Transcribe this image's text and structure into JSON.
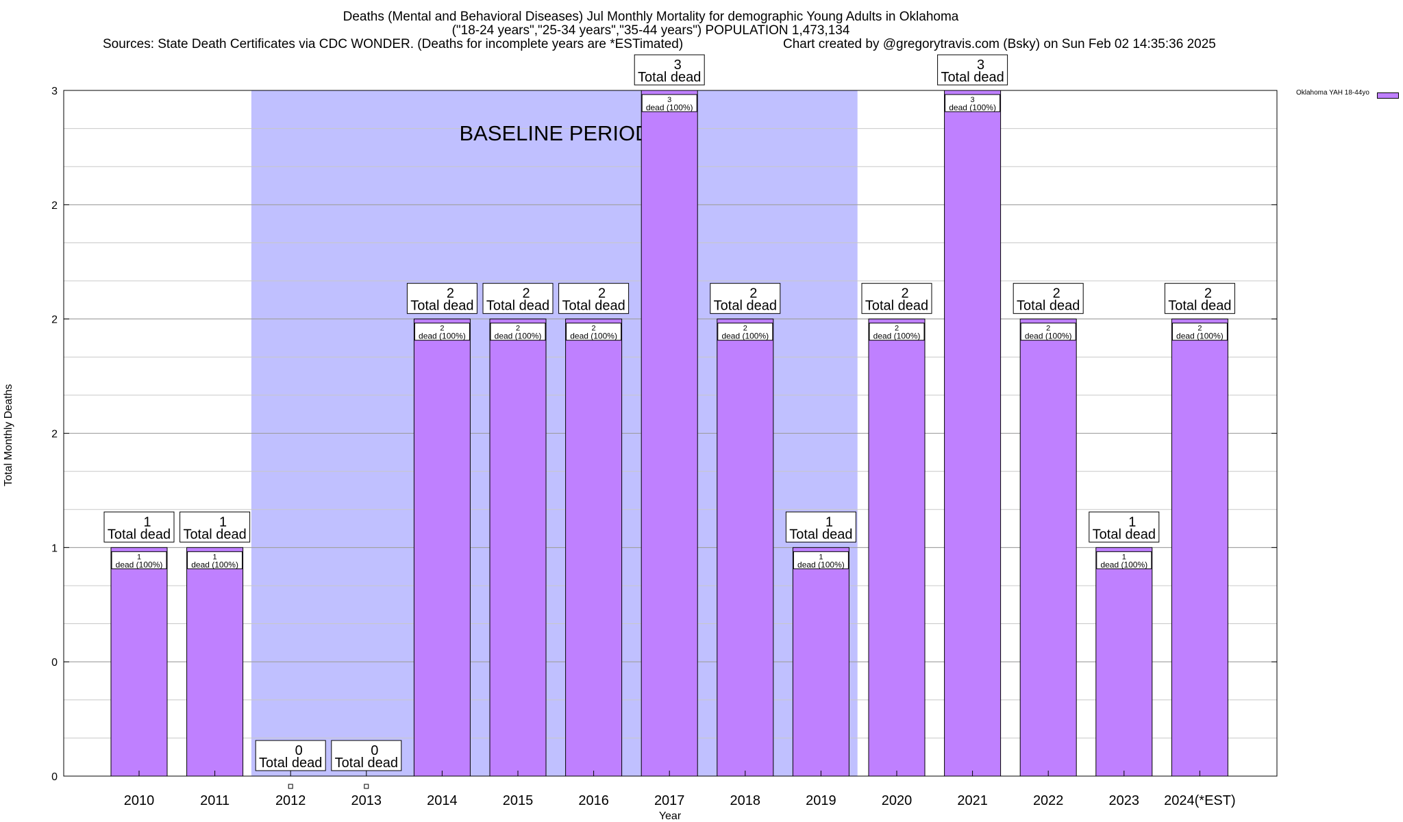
{
  "title": {
    "line1": "Deaths (Mental and Behavioral Diseases) Jul Monthly Mortality for demographic Young Adults in Oklahoma",
    "line2": "(\"18-24 years\",\"25-34 years\",\"35-44 years\") POPULATION 1,473,134",
    "line3": "Sources: State Death Certificates via CDC WONDER. (Deaths for incomplete years are *ESTimated)",
    "line4": "Chart created by @gregorytravis.com (Bsky) on Sun Feb 02 14:35:36 2025"
  },
  "colors": {
    "bar": "#bf80ff",
    "baseline": "#c0c0ff",
    "grid": "#c8c8c8"
  },
  "chart_data": {
    "type": "bar",
    "xlabel": "Year",
    "ylabel": "Total Monthly Deaths",
    "ylim": [
      0,
      3
    ],
    "ytick_values": [
      0,
      0.5,
      1,
      1.5,
      2,
      2.5,
      3
    ],
    "ytick_labels": [
      "0",
      "0",
      "1",
      "2",
      "2",
      "2",
      "3"
    ],
    "grid": true,
    "baseline_label": "BASELINE PERIOD",
    "baseline_range": [
      "2012",
      "2019"
    ],
    "categories": [
      "2010",
      "2011",
      "2012",
      "2013",
      "2014",
      "2015",
      "2016",
      "2017",
      "2018",
      "2019",
      "2020",
      "2021",
      "2022",
      "2023",
      "2024(*EST)"
    ],
    "series": [
      {
        "name": "Oklahoma YAH 18-44yo",
        "values": [
          1,
          1,
          0,
          0,
          2,
          2,
          2,
          3,
          2,
          1,
          2,
          3,
          2,
          1,
          2
        ]
      }
    ],
    "total_label_word": "Total dead",
    "inner_label_suffix": "dead (100%)",
    "legend_position": "top-right"
  }
}
